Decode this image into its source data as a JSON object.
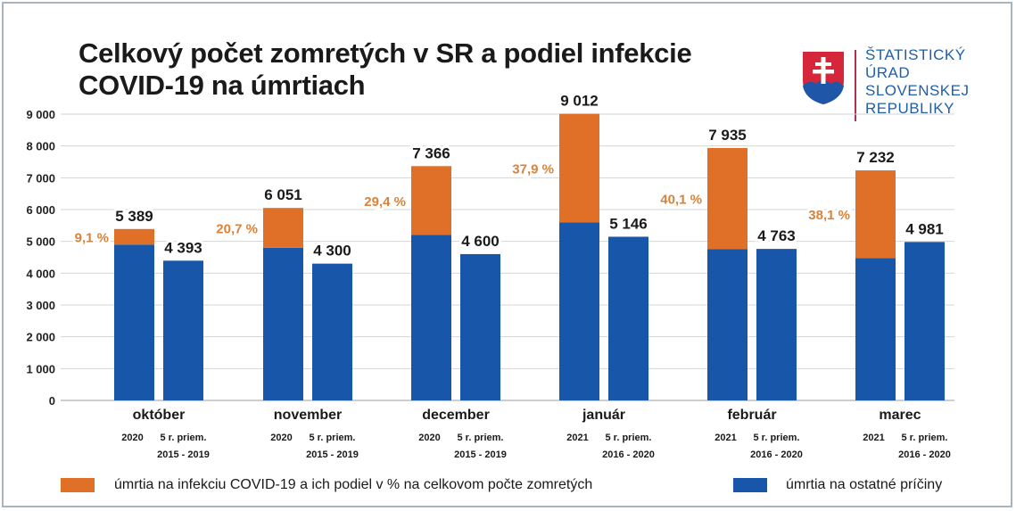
{
  "chart_data": {
    "type": "bar",
    "stacked": true,
    "title": "Celkový počet zomretých v SR a podiel infekcie COVID-19 na úmrtiach",
    "title_lines": [
      "Celkový počet zomretých v SR a podiel infekcie",
      "COVID-19 na úmrtiach"
    ],
    "xlabel": "",
    "ylabel": "",
    "ylim": [
      0,
      9000
    ],
    "yticks": [
      0,
      1000,
      2000,
      3000,
      4000,
      5000,
      6000,
      7000,
      8000,
      9000
    ],
    "ytick_labels": [
      "0",
      "1 000",
      "2 000",
      "3 000",
      "4 000",
      "5 000",
      "6 000",
      "7 000",
      "8 000",
      "9 000"
    ],
    "grid": true,
    "legend_position": "bottom",
    "colors": {
      "covid": "#e07028",
      "other": "#1756a8",
      "percent_label": "#d9823a",
      "grid": "#d0d0d0"
    },
    "categories": [
      {
        "month": "október",
        "bar1_label": "2020",
        "bar2_label_line1": "5 r. priem.",
        "bar2_label_line2": "2015 - 2019",
        "total_current": 5389,
        "total_current_label": "5 389",
        "covid_share_label": "9,1 %",
        "covid_share_pct": 9.1,
        "avg_5y": 4393,
        "avg_5y_label": "4 393"
      },
      {
        "month": "november",
        "bar1_label": "2020",
        "bar2_label_line1": "5 r. priem.",
        "bar2_label_line2": "2015 - 2019",
        "total_current": 6051,
        "total_current_label": "6 051",
        "covid_share_label": "20,7 %",
        "covid_share_pct": 20.7,
        "avg_5y": 4300,
        "avg_5y_label": "4 300"
      },
      {
        "month": "december",
        "bar1_label": "2020",
        "bar2_label_line1": "5 r. priem.",
        "bar2_label_line2": "2015 - 2019",
        "total_current": 7366,
        "total_current_label": "7 366",
        "covid_share_label": "29,4 %",
        "covid_share_pct": 29.4,
        "avg_5y": 4600,
        "avg_5y_label": "4 600"
      },
      {
        "month": "január",
        "bar1_label": "2021",
        "bar2_label_line1": "5 r. priem.",
        "bar2_label_line2": "2016 - 2020",
        "total_current": 9012,
        "total_current_label": "9 012",
        "covid_share_label": "37,9 %",
        "covid_share_pct": 37.9,
        "avg_5y": 5146,
        "avg_5y_label": "5 146"
      },
      {
        "month": "február",
        "bar1_label": "2021",
        "bar2_label_line1": "5 r. priem.",
        "bar2_label_line2": "2016 - 2020",
        "total_current": 7935,
        "total_current_label": "7 935",
        "covid_share_label": "40,1 %",
        "covid_share_pct": 40.1,
        "avg_5y": 4763,
        "avg_5y_label": "4 763"
      },
      {
        "month": "marec",
        "bar1_label": "2021",
        "bar2_label_line1": "5 r. priem.",
        "bar2_label_line2": "2016 - 2020",
        "total_current": 7232,
        "total_current_label": "7 232",
        "covid_share_label": "38,1 %",
        "covid_share_pct": 38.1,
        "avg_5y": 4981,
        "avg_5y_label": "4 981"
      }
    ],
    "series": [
      {
        "name": "úmrtia na infekciu COVID-19 a ich podiel v % na celkovom počte zomretých",
        "key": "covid",
        "values": [
          490,
          1253,
          2166,
          3416,
          3182,
          2755
        ]
      },
      {
        "name": "úmrtia na ostatné príčiny",
        "key": "other",
        "values_current": [
          4899,
          4798,
          5200,
          5596,
          4753,
          4477
        ],
        "values_avg_5y": [
          4393,
          4300,
          4600,
          5146,
          4763,
          4981
        ]
      }
    ]
  },
  "logo": {
    "lines": [
      "ŠTATISTICKÝ",
      "ÚRAD",
      "SLOVENSKEJ",
      "REPUBLIKY"
    ],
    "colors": {
      "shield_red": "#d6263a",
      "shield_blue": "#1f56a8",
      "cross": "#ffffff",
      "text": "#1f5fa8"
    }
  },
  "legend": {
    "covid_label": "úmrtia na infekciu COVID-19 a ich podiel v % na celkovom počte zomretých",
    "other_label": "úmrtia na ostatné príčiny"
  }
}
